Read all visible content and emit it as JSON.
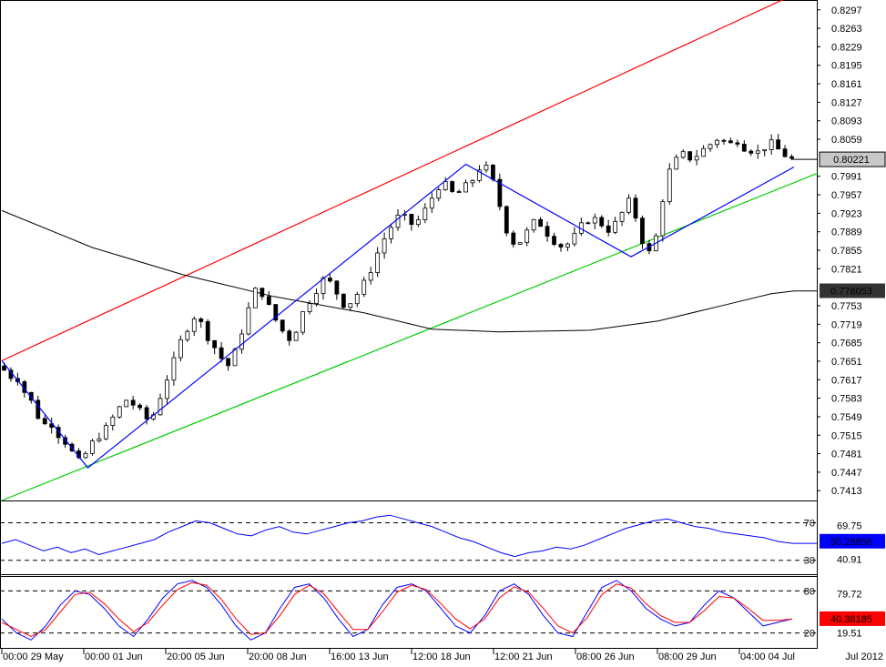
{
  "chart_data": [
    {
      "type": "candlestick",
      "panel": "price",
      "title": "",
      "ylim": [
        0.7395,
        0.8315
      ],
      "y_ticks": [
        "0.8297",
        "0.8263",
        "0.8229",
        "0.8195",
        "0.8161",
        "0.8127",
        "0.8093",
        "0.8059",
        "0.7991",
        "0.7957",
        "0.7923",
        "0.7889",
        "0.7855",
        "0.7821",
        "0.7753",
        "0.7719",
        "0.7685",
        "0.7651",
        "0.7617",
        "0.7583",
        "0.7549",
        "0.7515",
        "0.7481",
        "0.7447",
        "0.7413"
      ],
      "current_price": "0.80221",
      "moving_average_value": "0.778053",
      "colors": {
        "bull": "#ffffff",
        "bear": "#000000",
        "channel_upper": "#ff0000",
        "channel_lower": "#00cc00",
        "zigzag": "#0000ff",
        "moving_average": "#000000"
      },
      "x_labels": [
        "00:00 29 May",
        "00:00 01 Jun",
        "20:00 05 Jun",
        "20:00 08 Jun",
        "16:00 13 Jun",
        "12:00 18 Jun",
        "12:00 21 Jun",
        "08:00 26 Jun",
        "08:00 29 Jun",
        "04:00 04 Jul"
      ],
      "x_label_right": "Jul 2012",
      "close_path": [
        [
          0,
          0.7642
        ],
        [
          3,
          0.762
        ],
        [
          6,
          0.763
        ],
        [
          9,
          0.76
        ],
        [
          12,
          0.7585
        ],
        [
          15,
          0.756
        ],
        [
          18,
          0.753
        ],
        [
          21,
          0.7545
        ],
        [
          24,
          0.752
        ],
        [
          27,
          0.751
        ],
        [
          30,
          0.749
        ],
        [
          33,
          0.747
        ],
        [
          35,
          0.7462
        ],
        [
          38,
          0.749
        ],
        [
          41,
          0.7505
        ],
        [
          44,
          0.752
        ],
        [
          47,
          0.753
        ],
        [
          50,
          0.7555
        ],
        [
          53,
          0.757
        ],
        [
          56,
          0.7585
        ],
        [
          59,
          0.7565
        ],
        [
          62,
          0.7555
        ],
        [
          65,
          0.754
        ],
        [
          68,
          0.756
        ],
        [
          71,
          0.76
        ],
        [
          74,
          0.763
        ],
        [
          77,
          0.766
        ],
        [
          80,
          0.77
        ],
        [
          83,
          0.772
        ],
        [
          86,
          0.774
        ],
        [
          89,
          0.771
        ],
        [
          92,
          0.769
        ],
        [
          95,
          0.767
        ],
        [
          98,
          0.765
        ],
        [
          101,
          0.764
        ],
        [
          104,
          0.768
        ],
        [
          107,
          0.772
        ],
        [
          110,
          0.776
        ],
        [
          113,
          0.779
        ],
        [
          116,
          0.777
        ],
        [
          119,
          0.774
        ],
        [
          122,
          0.772
        ],
        [
          125,
          0.77
        ],
        [
          128,
          0.769
        ],
        [
          131,
          0.772
        ],
        [
          134,
          0.775
        ],
        [
          137,
          0.777
        ],
        [
          140,
          0.779
        ],
        [
          143,
          0.7805
        ],
        [
          146,
          0.779
        ],
        [
          149,
          0.777
        ],
        [
          152,
          0.775
        ],
        [
          155,
          0.7765
        ],
        [
          158,
          0.778
        ],
        [
          161,
          0.78
        ],
        [
          164,
          0.783
        ],
        [
          167,
          0.786
        ],
        [
          170,
          0.7885
        ],
        [
          173,
          0.7905
        ],
        [
          176,
          0.792
        ],
        [
          179,
          0.791
        ],
        [
          182,
          0.79
        ],
        [
          185,
          0.7915
        ],
        [
          188,
          0.7935
        ],
        [
          191,
          0.796
        ],
        [
          194,
          0.798
        ],
        [
          197,
          0.797
        ],
        [
          200,
          0.7955
        ],
        [
          203,
          0.7965
        ],
        [
          206,
          0.7975
        ],
        [
          209,
          0.799
        ],
        [
          212,
          0.8015
        ],
        [
          215,
          0.8
        ],
        [
          218,
          0.797
        ],
        [
          221,
          0.792
        ],
        [
          224,
          0.788
        ],
        [
          227,
          0.7865
        ],
        [
          230,
          0.7875
        ],
        [
          233,
          0.7895
        ],
        [
          236,
          0.791
        ],
        [
          239,
          0.79
        ],
        [
          242,
          0.788
        ],
        [
          245,
          0.787
        ],
        [
          248,
          0.786
        ],
        [
          251,
          0.787
        ],
        [
          254,
          0.7885
        ],
        [
          257,
          0.7905
        ],
        [
          260,
          0.7915
        ],
        [
          263,
          0.791
        ],
        [
          266,
          0.79
        ],
        [
          269,
          0.789
        ],
        [
          272,
          0.791
        ],
        [
          275,
          0.793
        ],
        [
          278,
          0.795
        ],
        [
          281,
          0.79
        ],
        [
          284,
          0.786
        ],
        [
          286,
          0.785
        ],
        [
          289,
          0.788
        ],
        [
          292,
          0.795
        ],
        [
          295,
          0.8
        ],
        [
          298,
          0.802
        ],
        [
          301,
          0.803
        ],
        [
          304,
          0.8025
        ],
        [
          307,
          0.803
        ],
        [
          310,
          0.804
        ],
        [
          313,
          0.805
        ],
        [
          316,
          0.806
        ],
        [
          319,
          0.8055
        ],
        [
          322,
          0.805
        ],
        [
          325,
          0.8058
        ],
        [
          328,
          0.8045
        ],
        [
          331,
          0.804
        ],
        [
          334,
          0.8035
        ],
        [
          337,
          0.8045
        ],
        [
          340,
          0.805
        ],
        [
          343,
          0.804
        ],
        [
          346,
          0.803
        ],
        [
          349,
          0.8022
        ]
      ],
      "moving_average": [
        [
          0,
          0.7928
        ],
        [
          40,
          0.786
        ],
        [
          80,
          0.781
        ],
        [
          120,
          0.777
        ],
        [
          160,
          0.774
        ],
        [
          190,
          0.771
        ],
        [
          220,
          0.7705
        ],
        [
          260,
          0.7708
        ],
        [
          290,
          0.7725
        ],
        [
          320,
          0.7755
        ],
        [
          340,
          0.7775
        ],
        [
          350,
          0.778
        ]
      ],
      "channel_upper": [
        [
          0,
          0.7652
        ],
        [
          350,
          0.8315
        ]
      ],
      "channel_lower": [
        [
          0,
          0.7395
        ],
        [
          350,
          0.798
        ]
      ],
      "zigzag": [
        [
          0,
          0.7652
        ],
        [
          38,
          0.7455
        ],
        [
          205,
          0.8013
        ],
        [
          278,
          0.7843
        ],
        [
          350,
          0.8008
        ]
      ]
    },
    {
      "type": "line",
      "panel": "rsi",
      "ylim": [
        20,
        85
      ],
      "levels": [
        70,
        30
      ],
      "level_labels": [
        "70",
        "30"
      ],
      "extra_labels": [
        "69.75",
        "40.91"
      ],
      "current_value": "50.28858",
      "series": [
        {
          "values": [
            48,
            52,
            46,
            40,
            44,
            38,
            42,
            36,
            40,
            44,
            48,
            52,
            60,
            66,
            72,
            70,
            64,
            58,
            56,
            62,
            66,
            60,
            58,
            62,
            66,
            70,
            72,
            76,
            78,
            74,
            70,
            66,
            60,
            54,
            50,
            44,
            38,
            34,
            38,
            40,
            44,
            42,
            46,
            52,
            58,
            64,
            68,
            72,
            74,
            70,
            66,
            64,
            60,
            58,
            56,
            54,
            50,
            48
          ]
        }
      ]
    },
    {
      "type": "line",
      "panel": "stochastic",
      "ylim": [
        0,
        100
      ],
      "levels": [
        80,
        20
      ],
      "level_labels": [
        "80",
        "20"
      ],
      "extra_labels": [
        "79.72",
        "19.51"
      ],
      "current_value": "40.38185",
      "series": [
        {
          "values": [
            40,
            20,
            10,
            30,
            60,
            80,
            75,
            55,
            30,
            15,
            40,
            70,
            90,
            95,
            85,
            60,
            30,
            10,
            20,
            55,
            85,
            90,
            70,
            40,
            15,
            25,
            60,
            85,
            90,
            80,
            55,
            30,
            20,
            45,
            80,
            90,
            75,
            45,
            20,
            15,
            50,
            85,
            95,
            80,
            55,
            40,
            30,
            35,
            60,
            80,
            70,
            50,
            30,
            35,
            40
          ]
        },
        {
          "values": [
            35,
            25,
            15,
            25,
            50,
            75,
            78,
            62,
            40,
            22,
            35,
            60,
            82,
            92,
            88,
            68,
            40,
            18,
            20,
            45,
            75,
            88,
            76,
            50,
            25,
            25,
            50,
            78,
            88,
            82,
            62,
            40,
            26,
            40,
            70,
            86,
            78,
            55,
            30,
            20,
            42,
            75,
            90,
            84,
            62,
            45,
            35,
            35,
            52,
            72,
            70,
            55,
            38,
            38,
            40
          ]
        }
      ],
      "colors": [
        "#0000ff",
        "#ff0000"
      ]
    }
  ]
}
